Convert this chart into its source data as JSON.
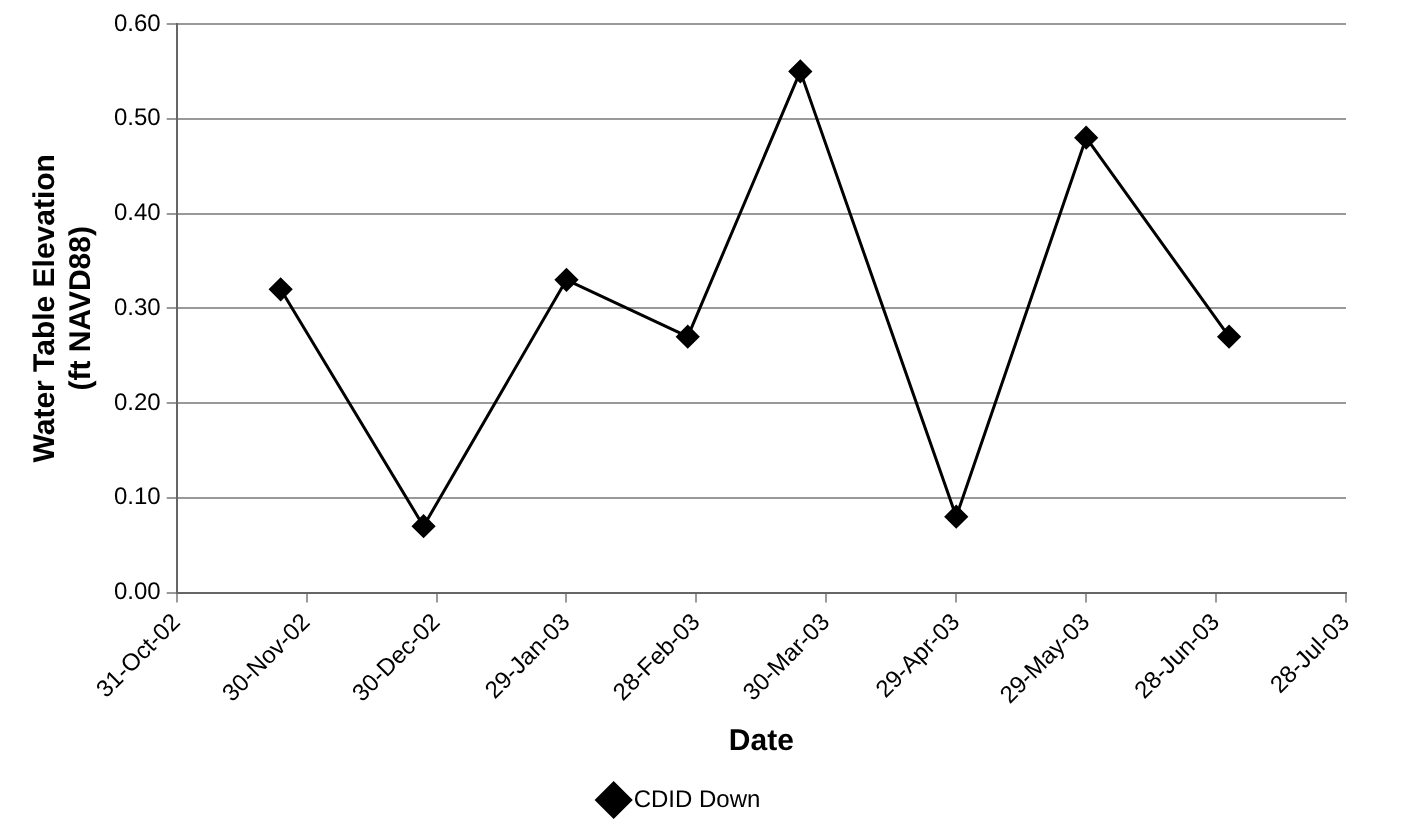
{
  "chart_data": {
    "type": "line",
    "xlabel": "Date",
    "ylabel": "Water Table Elevation\n(ft NAVD88)",
    "x": [
      "2002-11-24",
      "2002-12-27",
      "2003-01-29",
      "2003-02-26",
      "2003-03-24",
      "2003-04-29",
      "2003-05-29",
      "2003-07-01"
    ],
    "series": [
      {
        "name": "CDID Down",
        "color": "#000000",
        "values": [
          0.32,
          0.07,
          0.33,
          0.27,
          0.55,
          0.08,
          0.48,
          0.27
        ]
      }
    ],
    "xlim": [
      "2002-10-31",
      "2003-07-28"
    ],
    "xticks": [
      {
        "value": "2002-10-31",
        "label": "31-Oct-02"
      },
      {
        "value": "2002-11-30",
        "label": "30-Nov-02"
      },
      {
        "value": "2002-12-30",
        "label": "30-Dec-02"
      },
      {
        "value": "2003-01-29",
        "label": "29-Jan-03"
      },
      {
        "value": "2003-02-28",
        "label": "28-Feb-03"
      },
      {
        "value": "2003-03-30",
        "label": "30-Mar-03"
      },
      {
        "value": "2003-04-29",
        "label": "29-Apr-03"
      },
      {
        "value": "2003-05-29",
        "label": "29-May-03"
      },
      {
        "value": "2003-06-28",
        "label": "28-Jun-03"
      },
      {
        "value": "2003-07-28",
        "label": "28-Jul-03"
      }
    ],
    "ylim": [
      0,
      0.6
    ],
    "yticks": [
      {
        "value": 0,
        "label": "0.00"
      },
      {
        "value": 0.1,
        "label": "0.10"
      },
      {
        "value": 0.2,
        "label": "0.20"
      },
      {
        "value": 0.3,
        "label": "0.30"
      },
      {
        "value": 0.4,
        "label": "0.40"
      },
      {
        "value": 0.5,
        "label": "0.50"
      },
      {
        "value": 0.6,
        "label": "0.60"
      }
    ],
    "grid": "y",
    "legend": "bottom",
    "marker": "diamond",
    "line_style": "solid"
  }
}
